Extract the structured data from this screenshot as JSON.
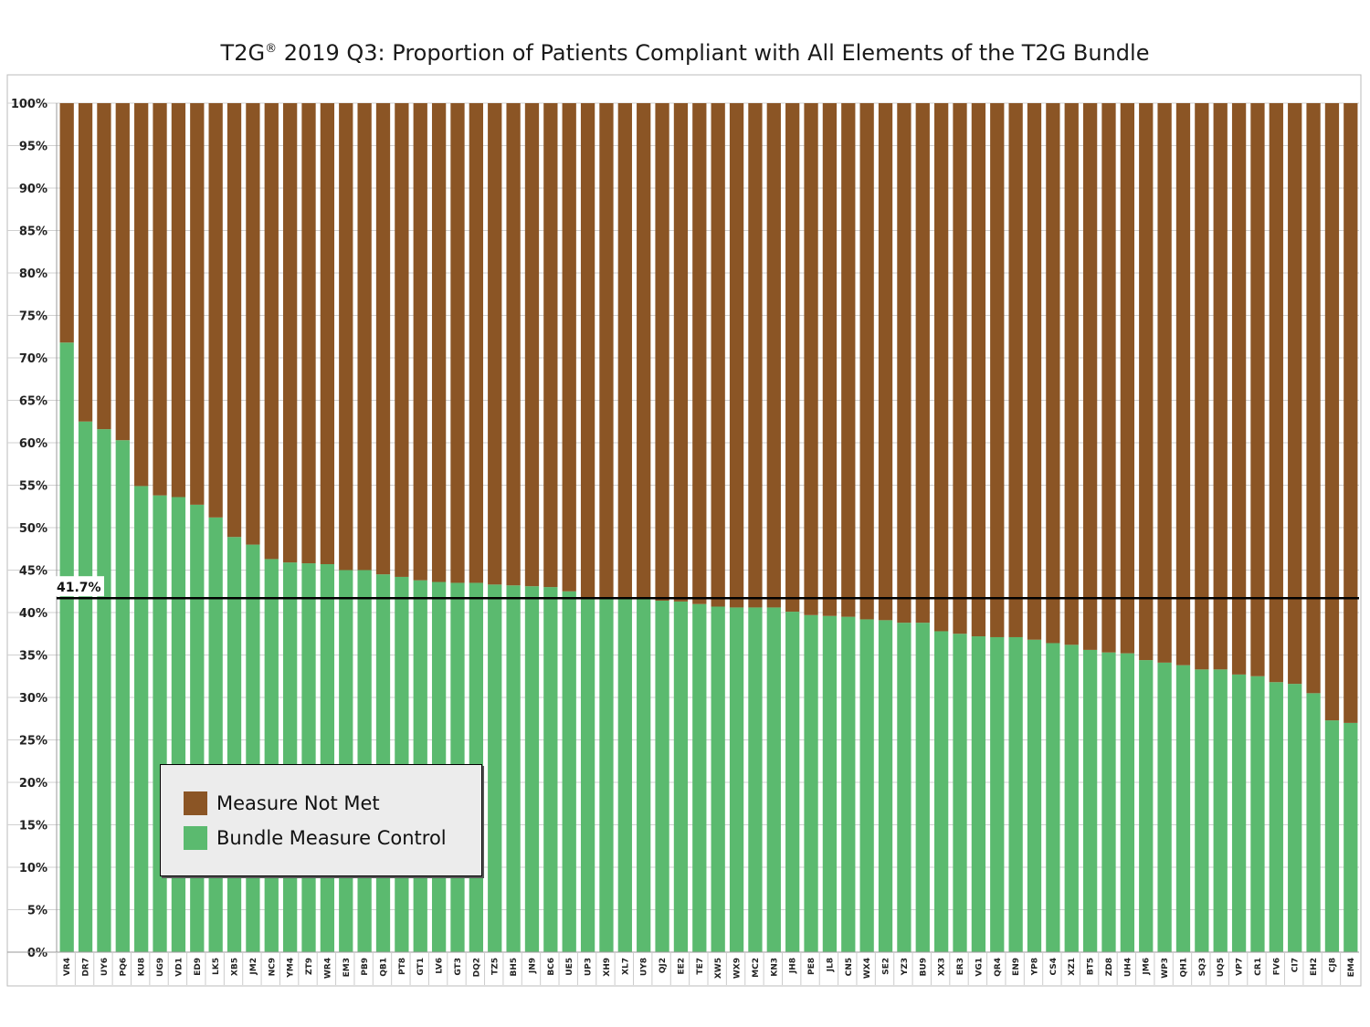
{
  "chart_data": {
    "type": "bar",
    "stacked": true,
    "title": "T2G® 2019 Q3: Proportion of Patients Compliant with All Elements of the T2G Bundle",
    "title_main": "T2G",
    "title_mark": "®",
    "title_rest": " 2019 Q3: Proportion of Patients Compliant with All Elements of the T2G Bundle",
    "ylim": [
      0,
      100
    ],
    "yticks": [
      "0%",
      "5%",
      "10%",
      "15%",
      "20%",
      "25%",
      "30%",
      "35%",
      "40%",
      "45%",
      "50%",
      "55%",
      "60%",
      "65%",
      "70%",
      "75%",
      "80%",
      "85%",
      "90%",
      "95%",
      "100%"
    ],
    "grid": true,
    "legend_position": "bottom-left",
    "reference_line": {
      "value": 41.7,
      "label": "41.7%"
    },
    "categories": [
      "VR4",
      "DR7",
      "UY6",
      "PQ6",
      "KU8",
      "UG9",
      "VD1",
      "ED9",
      "LK5",
      "XB5",
      "JM2",
      "NC9",
      "YM4",
      "ZT9",
      "WR4",
      "EM3",
      "PB9",
      "QB1",
      "PT8",
      "GT1",
      "LV6",
      "GT3",
      "DQ2",
      "TZ5",
      "BH5",
      "JN9",
      "BC6",
      "UE5",
      "UP3",
      "XH9",
      "XL7",
      "UY8",
      "QJ2",
      "EE2",
      "TE7",
      "XW5",
      "WX9",
      "MC2",
      "KN3",
      "JH8",
      "PE8",
      "JL8",
      "CN5",
      "WX4",
      "SE2",
      "YZ3",
      "BU9",
      "XX3",
      "ER3",
      "VG1",
      "QR4",
      "EN9",
      "YP8",
      "CS4",
      "XZ1",
      "BT5",
      "ZD8",
      "UH4",
      "JM6",
      "WP3",
      "QH1",
      "SQ3",
      "UQ5",
      "VP7",
      "CR1",
      "FV6",
      "CI7",
      "EH2",
      "CJ8",
      "EM4"
    ],
    "series": [
      {
        "name": "Measure Not Met",
        "color": "#8b5525",
        "values": [
          28.2,
          37.5,
          38.4,
          39.7,
          45.1,
          46.2,
          46.4,
          47.3,
          48.8,
          51.1,
          52.0,
          53.7,
          54.1,
          54.2,
          54.3,
          55.0,
          55.0,
          55.5,
          55.8,
          56.2,
          56.4,
          56.5,
          56.5,
          56.7,
          56.8,
          56.9,
          57.0,
          57.5,
          58.3,
          58.3,
          58.4,
          58.4,
          58.6,
          58.7,
          59.0,
          59.3,
          59.4,
          59.4,
          59.4,
          59.9,
          60.3,
          60.4,
          60.5,
          60.8,
          60.9,
          61.2,
          61.2,
          62.2,
          62.5,
          62.8,
          62.9,
          62.9,
          63.2,
          63.6,
          63.8,
          64.4,
          64.7,
          64.8,
          65.6,
          65.9,
          66.2,
          66.7,
          66.7,
          67.3,
          67.5,
          68.2,
          68.4,
          69.5,
          72.7,
          73.0
        ]
      },
      {
        "name": "Bundle Measure Control",
        "color": "#5bba6f",
        "values": [
          71.8,
          62.5,
          61.6,
          60.3,
          54.9,
          53.8,
          53.6,
          52.7,
          51.2,
          48.9,
          48.0,
          46.3,
          45.9,
          45.8,
          45.7,
          45.0,
          45.0,
          44.5,
          44.2,
          43.8,
          43.6,
          43.5,
          43.5,
          43.3,
          43.2,
          43.1,
          43.0,
          42.5,
          41.7,
          41.7,
          41.6,
          41.6,
          41.4,
          41.3,
          41.0,
          40.7,
          40.6,
          40.6,
          40.6,
          40.1,
          39.7,
          39.6,
          39.5,
          39.2,
          39.1,
          38.8,
          38.8,
          37.8,
          37.5,
          37.2,
          37.1,
          37.1,
          36.8,
          36.4,
          36.2,
          35.6,
          35.3,
          35.2,
          34.4,
          34.1,
          33.8,
          33.3,
          33.3,
          32.7,
          32.5,
          31.8,
          31.6,
          30.5,
          27.3,
          27.0
        ]
      }
    ]
  },
  "legend": {
    "items": [
      {
        "label": "Measure Not Met",
        "color": "#8b5525"
      },
      {
        "label": "Bundle Measure Control",
        "color": "#5bba6f"
      }
    ]
  }
}
